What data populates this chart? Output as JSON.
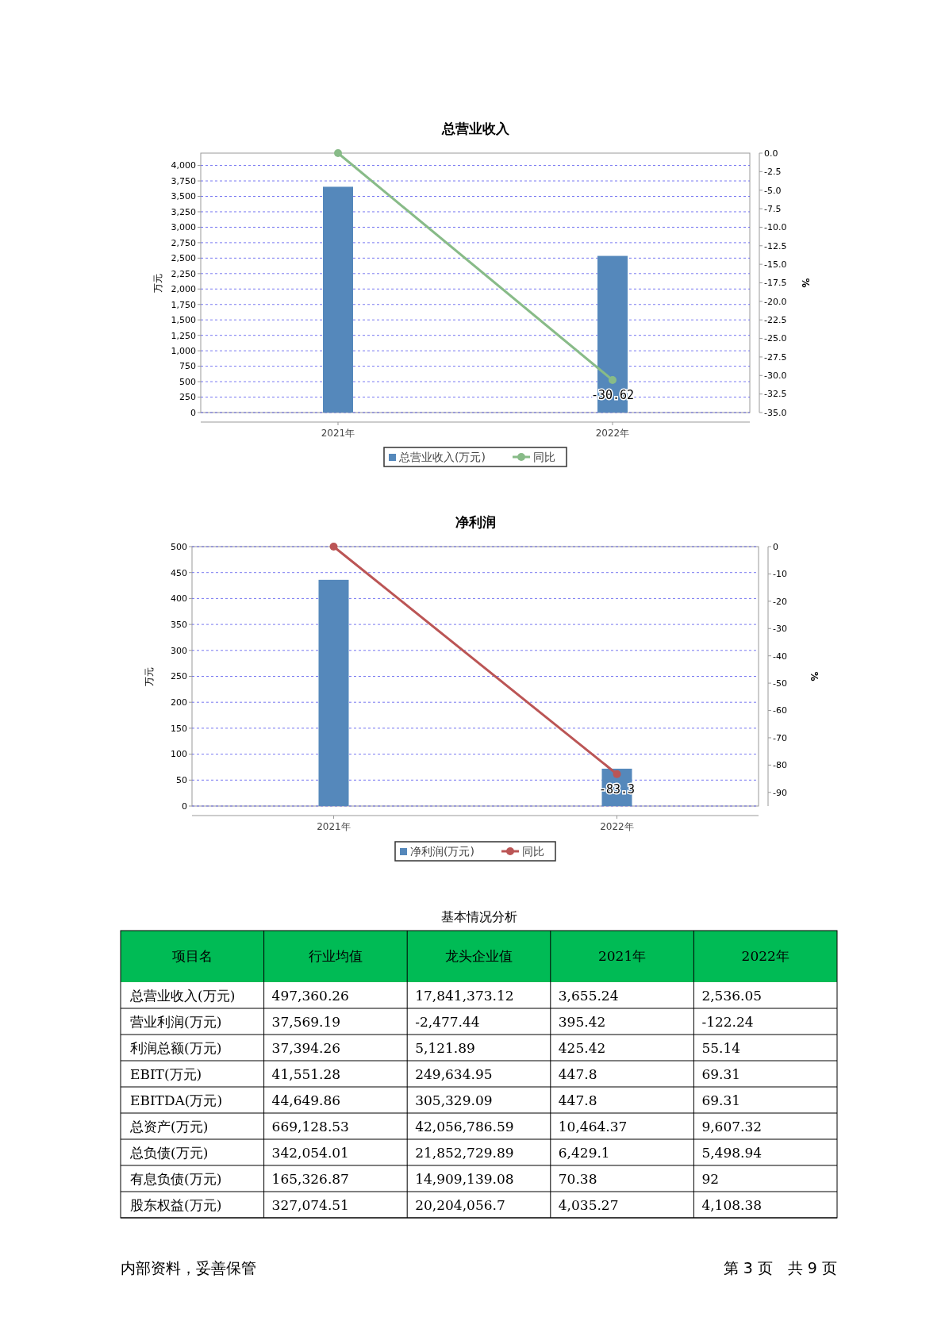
{
  "chart_data": [
    {
      "type": "bar",
      "title": "总营业收入",
      "categories": [
        "2021年",
        "2022年"
      ],
      "ylabel": "万元",
      "y2label": "%",
      "ylim": [
        0,
        4200
      ],
      "yticks": [
        {
          "value": 0,
          "label": "0"
        },
        {
          "value": 250,
          "label": "250"
        },
        {
          "value": 500,
          "label": "500"
        },
        {
          "value": 750,
          "label": "750"
        },
        {
          "value": 1000,
          "label": "1,000"
        },
        {
          "value": 1250,
          "label": "1,250"
        },
        {
          "value": 1500,
          "label": "1,500"
        },
        {
          "value": 1750,
          "label": "1,750"
        },
        {
          "value": 2000,
          "label": "2,000"
        },
        {
          "value": 2250,
          "label": "2,250"
        },
        {
          "value": 2500,
          "label": "2,500"
        },
        {
          "value": 2750,
          "label": "2,750"
        },
        {
          "value": 3000,
          "label": "3,000"
        },
        {
          "value": 3250,
          "label": "3,250"
        },
        {
          "value": 3500,
          "label": "3,500"
        },
        {
          "value": 3750,
          "label": "3,750"
        },
        {
          "value": 4000,
          "label": "4,000"
        }
      ],
      "y2lim": [
        -35,
        0
      ],
      "y2ticks": [
        {
          "value": 0,
          "label": "0.0"
        },
        -2.5,
        {
          "value": -5,
          "label": "-5.0"
        },
        -7.5,
        {
          "value": -10,
          "label": "-10.0"
        },
        -12.5,
        {
          "value": -15,
          "label": "-15.0"
        },
        -17.5,
        {
          "value": -20,
          "label": "-20.0"
        },
        -22.5,
        {
          "value": -25,
          "label": "-25.0"
        },
        -27.5,
        {
          "value": -30,
          "label": "-30.0"
        },
        -32.5,
        {
          "value": -35,
          "label": "-35.0"
        }
      ],
      "grid": "y",
      "legend": "bottom",
      "marker": "circle",
      "series": [
        {
          "name": "总营业收入(万元)",
          "type": "bar",
          "color": "#5588bb",
          "values": [
            3655.24,
            2536.05
          ]
        },
        {
          "name": "同比",
          "type": "line",
          "axis": "y2",
          "color": "#88bb88",
          "values": [
            0,
            -30.62
          ],
          "value_labels": [
            null,
            "-30.62"
          ]
        }
      ]
    },
    {
      "type": "bar",
      "title": "净利润",
      "categories": [
        "2021年",
        "2022年"
      ],
      "ylabel": "万元",
      "y2label": "%",
      "ylim": [
        0,
        500
      ],
      "yticks": [
        0,
        50,
        100,
        150,
        200,
        250,
        300,
        350,
        400,
        450,
        500
      ],
      "y2lim": [
        -95,
        0
      ],
      "y2ticks": [
        0,
        -10,
        -20,
        -30,
        -40,
        -50,
        -60,
        -70,
        -80,
        -90
      ],
      "grid": "y",
      "legend": "bottom",
      "marker": "circle",
      "series": [
        {
          "name": "净利润(万元)",
          "type": "bar",
          "color": "#5588bb",
          "values": [
            436,
            72
          ]
        },
        {
          "name": "同比",
          "type": "line",
          "axis": "y2",
          "color": "#bb5555",
          "values": [
            0,
            -83.3
          ],
          "value_labels": [
            null,
            "-83.3"
          ]
        }
      ]
    },
    {
      "type": "other",
      "title": "基本情况分析",
      "ylabel": "项目名",
      "categories": [
        "总营业收入(万元)",
        "营业利润(万元)",
        "利润总额(万元)",
        "EBIT(万元)",
        "EBITDA(万元)",
        "总资产(万元)",
        "总负债(万元)",
        "有息负债(万元)",
        "股东权益(万元)"
      ],
      "annotations": [
        "内部资料，妥善保管",
        "第 3 页　共 9 页"
      ],
      "series": [
        {
          "name": "行业均值",
          "values": [
            497360.26,
            37569.19,
            37394.26,
            41551.28,
            44649.86,
            669128.53,
            342054.01,
            165326.87,
            327074.51
          ],
          "value_labels": [
            "497,360.26",
            "37,569.19",
            "37,394.26",
            "41,551.28",
            "44,649.86",
            "669,128.53",
            "342,054.01",
            "165,326.87",
            "327,074.51"
          ]
        },
        {
          "name": "龙头企业值",
          "values": [
            17841373.12,
            -2477.44,
            5121.89,
            249634.95,
            305329.09,
            42056786.59,
            21852729.89,
            14909139.08,
            20204056.7
          ],
          "value_labels": [
            "17,841,373.12",
            "-2,477.44",
            "5,121.89",
            "249,634.95",
            "305,329.09",
            "42,056,786.59",
            "21,852,729.89",
            "14,909,139.08",
            "20,204,056.7"
          ]
        },
        {
          "name": "2021年",
          "values": [
            3655.24,
            395.42,
            425.42,
            447.8,
            447.8,
            10464.37,
            6429.1,
            70.38,
            4035.27
          ],
          "value_labels": [
            "3,655.24",
            "395.42",
            "425.42",
            "447.8",
            "447.8",
            "10,464.37",
            "6,429.1",
            "70.38",
            "4,035.27"
          ]
        },
        {
          "name": "2022年",
          "values": [
            2536.05,
            -122.24,
            55.14,
            69.31,
            69.31,
            9607.32,
            5498.94,
            92,
            4108.38
          ],
          "value_labels": [
            "2,536.05",
            "-122.24",
            "55.14",
            "69.31",
            "69.31",
            "9,607.32",
            "5,498.94",
            "92",
            "4,108.38"
          ]
        }
      ]
    }
  ]
}
